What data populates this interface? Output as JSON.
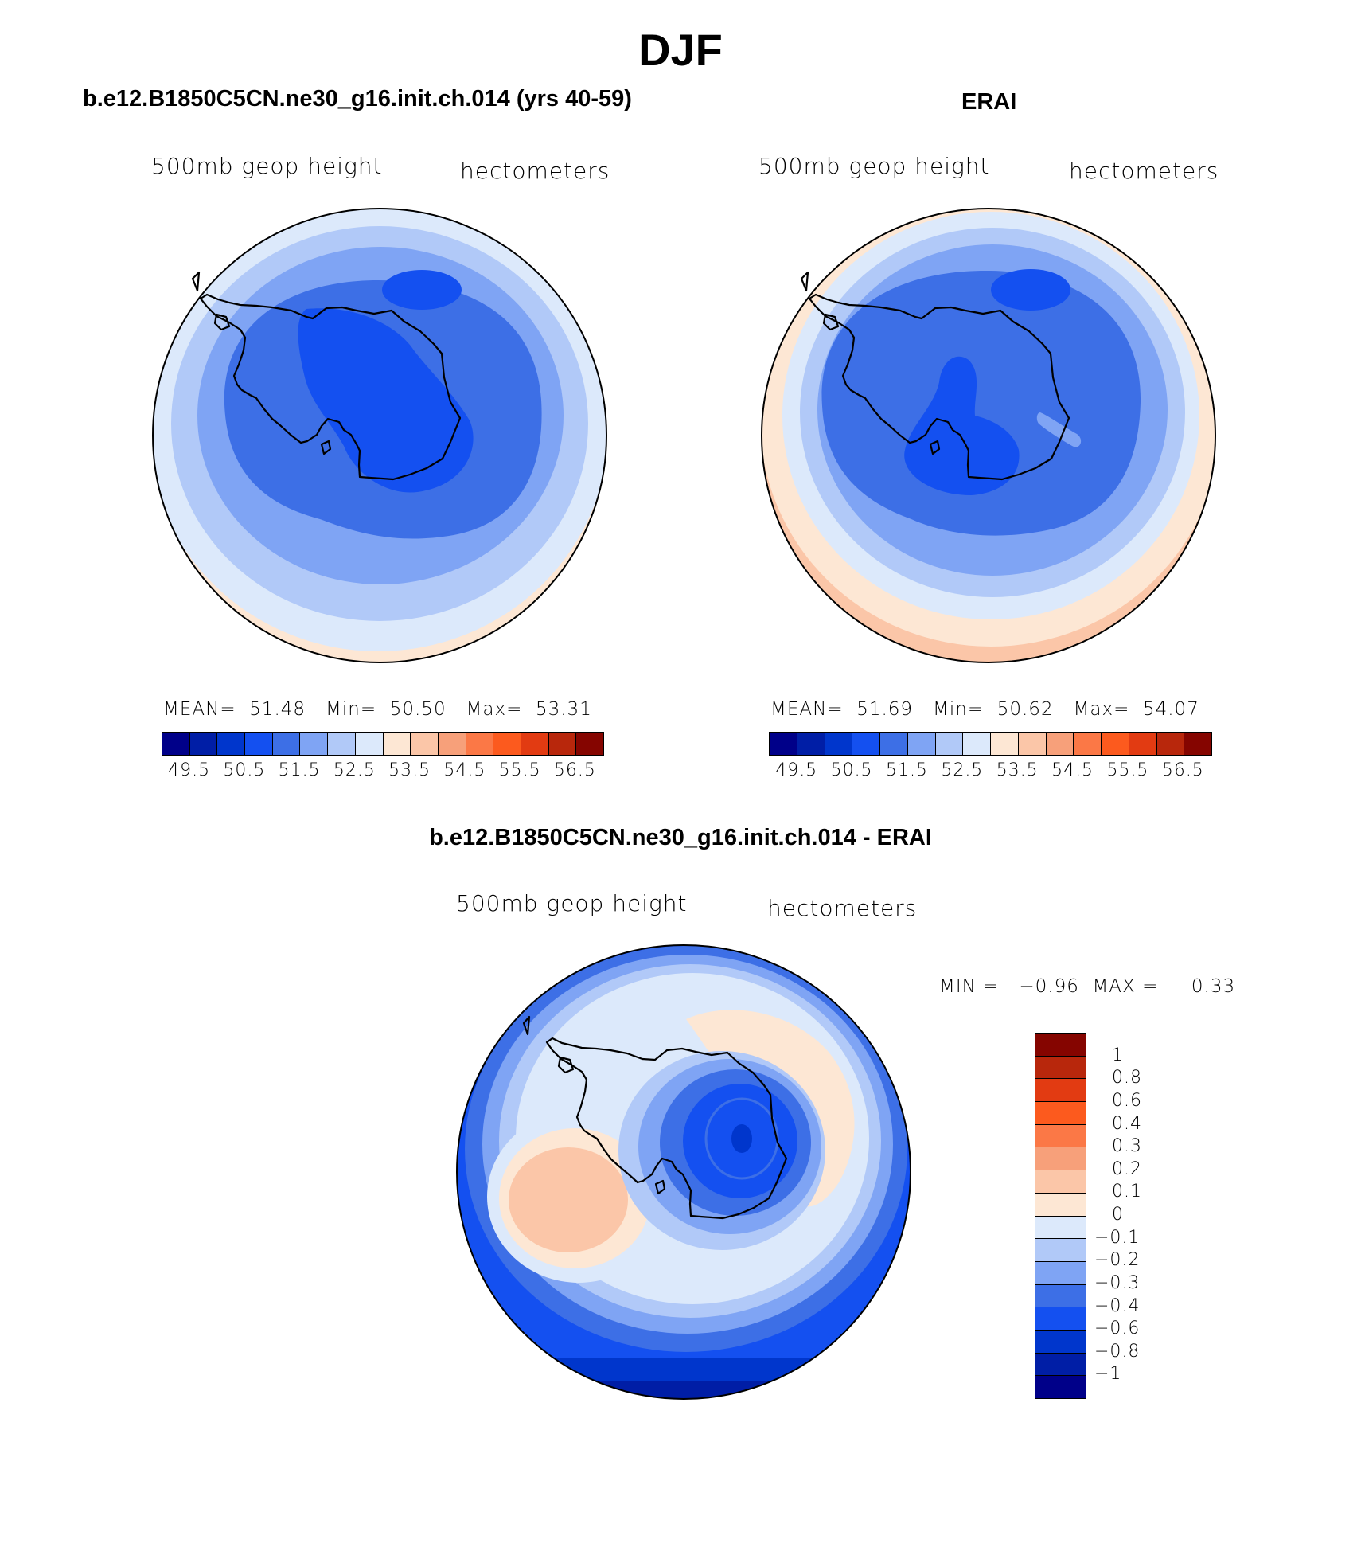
{
  "title": "DJF",
  "panels": [
    {
      "title": "b.e12.B1850C5CN.ne30_g16.init.ch.014 (yrs 40-59)",
      "left_subtitle": "500mb geop height",
      "right_subtitle": "hectometers",
      "stats": {
        "mean_label": "MEAN=",
        "mean": "51.48",
        "min_label": "Min=",
        "min": "50.50",
        "max_label": "Max=",
        "max": "53.31"
      }
    },
    {
      "title": "ERAI",
      "left_subtitle": "500mb geop height",
      "right_subtitle": "hectometers",
      "stats": {
        "mean_label": "MEAN=",
        "mean": "51.69",
        "min_label": "Min=",
        "min": "50.62",
        "max_label": "Max=",
        "max": "54.07"
      }
    }
  ],
  "diff_panel": {
    "title": "b.e12.B1850C5CN.ne30_g16.init.ch.014 - ERAI",
    "left_subtitle": "500mb geop height",
    "right_subtitle": "hectometers",
    "minmax": "MIN =   −0.96  MAX =     0.33"
  },
  "colorbar_top": {
    "colors": [
      "#000089",
      "#001ea6",
      "#0036cc",
      "#1450f0",
      "#3d6fe6",
      "#7fa4f4",
      "#b1c9f8",
      "#dce9fb",
      "#fde7d4",
      "#fbc6a8",
      "#f7a07a",
      "#fb7846",
      "#fc5a1e",
      "#e23b12",
      "#b8270c",
      "#850500"
    ],
    "labels": [
      "49.5",
      "50.5",
      "51.5",
      "52.5",
      "53.5",
      "54.5",
      "55.5",
      "56.5"
    ]
  },
  "colorbar_diff": {
    "colors": [
      "#850500",
      "#b8270c",
      "#e23b12",
      "#fc5a1e",
      "#fb7846",
      "#f7a07a",
      "#fbc6a8",
      "#fde7d4",
      "#dce9fb",
      "#b1c9f8",
      "#7fa4f4",
      "#3d6fe6",
      "#1450f0",
      "#0036cc",
      "#001ea6",
      "#000089"
    ],
    "labels": [
      "1",
      "0.8",
      "0.6",
      "0.4",
      "0.3",
      "0.2",
      "0.1",
      "0",
      "−0.1",
      "−0.2",
      "−0.3",
      "−0.4",
      "−0.6",
      "−0.8",
      "−1"
    ]
  }
}
